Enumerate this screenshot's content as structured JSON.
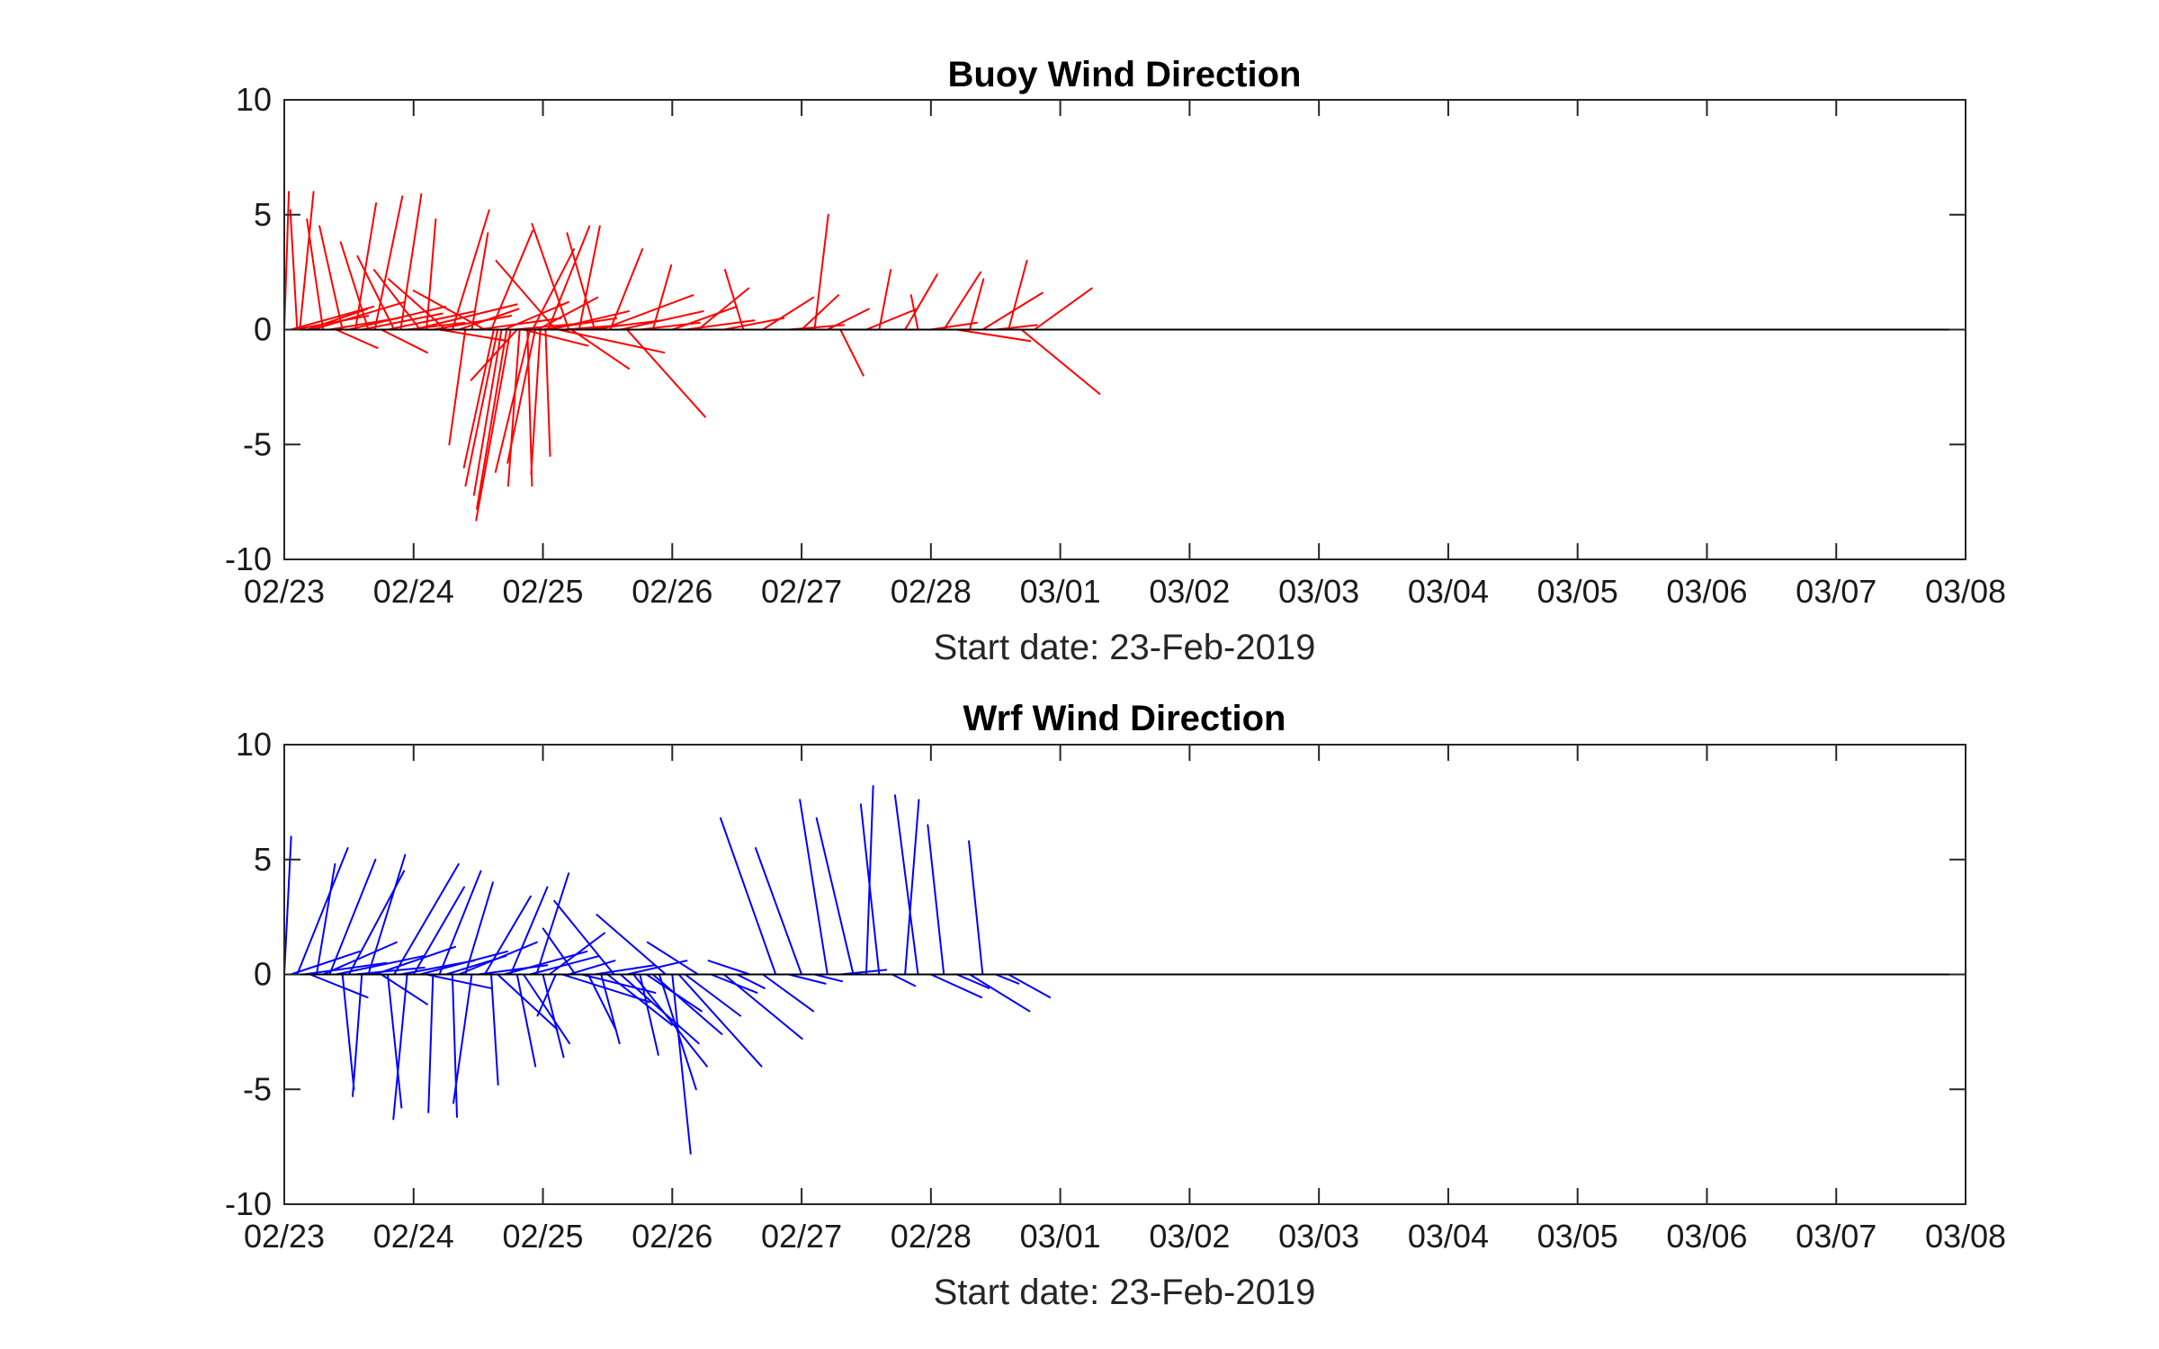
{
  "chart_data": [
    {
      "type": "feather",
      "title": "Buoy Wind Direction",
      "xlabel": "Start date: 23-Feb-2019",
      "ylabel": "",
      "color": "#ff0000",
      "xlim": [
        0,
        13
      ],
      "ylim": [
        -10,
        10
      ],
      "grid": false,
      "xtick_labels": [
        "02/23",
        "02/24",
        "02/25",
        "02/26",
        "02/27",
        "02/28",
        "03/01",
        "03/02",
        "03/03",
        "03/04",
        "03/05",
        "03/06",
        "03/07",
        "03/08"
      ],
      "ytick_labels": [
        "10",
        "5",
        "0",
        "-5",
        "-10"
      ],
      "ytick_values": [
        10,
        5,
        0,
        -5,
        -10
      ],
      "series": [
        {
          "x0": 0.0,
          "u": 0.2,
          "v": 6.0
        },
        {
          "x0": 0.05,
          "u": 3.6,
          "v": 1.0
        },
        {
          "x0": 0.08,
          "u": 3.2,
          "v": 0.6
        },
        {
          "x0": 0.1,
          "u": -0.3,
          "v": 5.2
        },
        {
          "x0": 0.12,
          "u": 0.6,
          "v": 6.0
        },
        {
          "x0": 0.18,
          "u": 2.6,
          "v": 0.9
        },
        {
          "x0": 0.22,
          "u": 4.0,
          "v": 1.2
        },
        {
          "x0": 0.3,
          "u": -0.7,
          "v": 4.8
        },
        {
          "x0": 0.35,
          "u": 3.0,
          "v": 0.5
        },
        {
          "x0": 0.4,
          "u": 1.8,
          "v": -0.8
        },
        {
          "x0": 0.45,
          "u": -1.0,
          "v": 4.5
        },
        {
          "x0": 0.5,
          "u": 4.2,
          "v": 1.0
        },
        {
          "x0": 0.55,
          "u": 0.9,
          "v": 5.5
        },
        {
          "x0": 0.6,
          "u": 3.5,
          "v": 0.7
        },
        {
          "x0": 0.65,
          "u": -1.2,
          "v": 3.8
        },
        {
          "x0": 0.7,
          "u": 1.2,
          "v": 5.8
        },
        {
          "x0": 0.75,
          "u": 2.0,
          "v": -1.0
        },
        {
          "x0": 0.8,
          "u": 3.8,
          "v": 0.8
        },
        {
          "x0": 0.85,
          "u": -1.6,
          "v": 3.2
        },
        {
          "x0": 0.9,
          "u": 0.9,
          "v": 5.9
        },
        {
          "x0": 0.95,
          "u": 2.5,
          "v": 0.3
        },
        {
          "x0": 1.0,
          "u": 4.5,
          "v": 1.1
        },
        {
          "x0": 1.05,
          "u": -2.0,
          "v": 2.6
        },
        {
          "x0": 1.1,
          "u": 0.4,
          "v": 4.8
        },
        {
          "x0": 1.15,
          "u": 3.4,
          "v": 0.6
        },
        {
          "x0": 1.2,
          "u": 3.0,
          "v": -0.5
        },
        {
          "x0": 1.25,
          "u": -2.5,
          "v": 2.2
        },
        {
          "x0": 1.3,
          "u": 1.6,
          "v": 5.2
        },
        {
          "x0": 1.35,
          "u": 2.6,
          "v": 0.9
        },
        {
          "x0": 1.4,
          "u": -0.7,
          "v": -5.0
        },
        {
          "x0": 1.45,
          "u": 0.7,
          "v": 4.2
        },
        {
          "x0": 1.5,
          "u": 3.6,
          "v": 0.5
        },
        {
          "x0": 1.55,
          "u": -3.1,
          "v": 1.7
        },
        {
          "x0": 1.6,
          "u": 1.8,
          "v": 4.3
        },
        {
          "x0": 1.62,
          "u": -1.3,
          "v": -6.0
        },
        {
          "x0": 1.65,
          "u": -1.4,
          "v": -6.8
        },
        {
          "x0": 1.68,
          "u": -1.2,
          "v": -7.2
        },
        {
          "x0": 1.7,
          "u": 2.8,
          "v": 1.2
        },
        {
          "x0": 1.72,
          "u": -1.3,
          "v": -7.8
        },
        {
          "x0": 1.75,
          "u": -1.5,
          "v": -8.3
        },
        {
          "x0": 1.78,
          "u": 3.2,
          "v": 0.3
        },
        {
          "x0": 1.8,
          "u": -2.0,
          "v": -2.2
        },
        {
          "x0": 1.82,
          "u": -0.5,
          "v": -6.8
        },
        {
          "x0": 1.85,
          "u": 2.8,
          "v": -0.7
        },
        {
          "x0": 1.88,
          "u": 0.2,
          "v": -6.8
        },
        {
          "x0": 1.9,
          "u": -1.5,
          "v": -6.2
        },
        {
          "x0": 1.92,
          "u": 1.8,
          "v": 3.5
        },
        {
          "x0": 1.94,
          "u": -1.2,
          "v": -5.8
        },
        {
          "x0": 1.96,
          "u": 2.6,
          "v": 1.4
        },
        {
          "x0": 1.98,
          "u": -0.4,
          "v": -6.3
        },
        {
          "x0": 2.0,
          "u": 3.2,
          "v": 0.5
        },
        {
          "x0": 2.02,
          "u": 0.2,
          "v": -5.5
        },
        {
          "x0": 2.04,
          "u": 1.8,
          "v": 4.5
        },
        {
          "x0": 2.06,
          "u": 3.4,
          "v": 0.8
        },
        {
          "x0": 2.1,
          "u": -2.6,
          "v": 3.0
        },
        {
          "x0": 2.12,
          "u": 4.6,
          "v": -1.0
        },
        {
          "x0": 2.16,
          "u": 2.6,
          "v": 0.2
        },
        {
          "x0": 2.2,
          "u": -1.6,
          "v": 4.6
        },
        {
          "x0": 2.22,
          "u": 2.5,
          "v": -1.7
        },
        {
          "x0": 2.28,
          "u": 0.9,
          "v": 4.5
        },
        {
          "x0": 2.35,
          "u": 3.2,
          "v": 0.4
        },
        {
          "x0": 2.4,
          "u": -1.2,
          "v": 4.2
        },
        {
          "x0": 2.45,
          "u": 4.0,
          "v": 1.5
        },
        {
          "x0": 2.52,
          "u": 1.4,
          "v": 3.5
        },
        {
          "x0": 2.6,
          "u": 3.6,
          "v": 0.8
        },
        {
          "x0": 2.65,
          "u": 3.4,
          "v": -3.8
        },
        {
          "x0": 2.75,
          "u": 2.6,
          "v": 0.3
        },
        {
          "x0": 2.85,
          "u": 0.8,
          "v": 2.8
        },
        {
          "x0": 3.0,
          "u": 2.8,
          "v": 1.0
        },
        {
          "x0": 3.1,
          "u": 3.0,
          "v": 0.4
        },
        {
          "x0": 3.2,
          "u": 2.2,
          "v": 1.8
        },
        {
          "x0": 3.4,
          "u": 2.6,
          "v": 0.5
        },
        {
          "x0": 3.55,
          "u": -0.8,
          "v": 2.6
        },
        {
          "x0": 3.7,
          "u": 2.2,
          "v": 1.4
        },
        {
          "x0": 3.9,
          "u": 2.4,
          "v": 0.2
        },
        {
          "x0": 4.0,
          "u": 1.6,
          "v": 1.5
        },
        {
          "x0": 4.1,
          "u": 0.6,
          "v": 5.0
        },
        {
          "x0": 4.2,
          "u": 1.8,
          "v": 0.9
        },
        {
          "x0": 4.3,
          "u": 1.0,
          "v": -2.0
        },
        {
          "x0": 4.5,
          "u": 2.2,
          "v": 0.9
        },
        {
          "x0": 4.6,
          "u": 0.5,
          "v": 2.6
        },
        {
          "x0": 4.8,
          "u": 1.4,
          "v": 2.4
        },
        {
          "x0": 4.9,
          "u": -0.3,
          "v": 1.5
        },
        {
          "x0": 5.0,
          "u": 2.0,
          "v": 0.3
        },
        {
          "x0": 5.1,
          "u": 1.6,
          "v": 2.5
        },
        {
          "x0": 5.2,
          "u": 3.2,
          "v": -0.5
        },
        {
          "x0": 5.3,
          "u": 0.6,
          "v": 2.2
        },
        {
          "x0": 5.4,
          "u": 2.6,
          "v": 1.6
        },
        {
          "x0": 5.5,
          "u": 1.8,
          "v": 0.2
        },
        {
          "x0": 5.6,
          "u": 0.8,
          "v": 3.0
        },
        {
          "x0": 5.7,
          "u": 3.4,
          "v": -2.8
        },
        {
          "x0": 5.8,
          "u": 2.5,
          "v": 1.8
        }
      ]
    },
    {
      "type": "feather",
      "title": "Wrf Wind Direction",
      "xlabel": "Start date: 23-Feb-2019",
      "ylabel": "",
      "color": "#0000ff",
      "xlim": [
        0,
        13
      ],
      "ylim": [
        -10,
        10
      ],
      "grid": false,
      "xtick_labels": [
        "02/23",
        "02/24",
        "02/25",
        "02/26",
        "02/27",
        "02/28",
        "03/01",
        "03/02",
        "03/03",
        "03/04",
        "03/05",
        "03/06",
        "03/07",
        "03/08"
      ],
      "ytick_labels": [
        "10",
        "5",
        "0",
        "-5",
        "-10"
      ],
      "ytick_values": [
        10,
        5,
        0,
        -5,
        -10
      ],
      "series": [
        {
          "x0": 0.0,
          "u": 0.3,
          "v": 6.0
        },
        {
          "x0": 0.05,
          "u": 3.0,
          "v": 1.0
        },
        {
          "x0": 0.1,
          "u": 2.2,
          "v": 5.5
        },
        {
          "x0": 0.15,
          "u": 3.6,
          "v": 0.5
        },
        {
          "x0": 0.2,
          "u": 2.5,
          "v": -1.0
        },
        {
          "x0": 0.25,
          "u": 0.8,
          "v": 4.8
        },
        {
          "x0": 0.3,
          "u": 3.2,
          "v": 1.4
        },
        {
          "x0": 0.35,
          "u": 2.0,
          "v": 5.0
        },
        {
          "x0": 0.4,
          "u": 3.8,
          "v": 0.8
        },
        {
          "x0": 0.45,
          "u": 0.5,
          "v": -5.0
        },
        {
          "x0": 0.5,
          "u": 2.4,
          "v": 4.5
        },
        {
          "x0": 0.55,
          "u": 3.0,
          "v": 0.3
        },
        {
          "x0": 0.6,
          "u": -0.4,
          "v": -5.3
        },
        {
          "x0": 0.65,
          "u": 1.6,
          "v": 5.2
        },
        {
          "x0": 0.7,
          "u": 3.5,
          "v": 1.2
        },
        {
          "x0": 0.75,
          "u": 2.0,
          "v": -1.3
        },
        {
          "x0": 0.8,
          "u": 0.6,
          "v": -5.8
        },
        {
          "x0": 0.85,
          "u": 2.8,
          "v": 4.8
        },
        {
          "x0": 0.9,
          "u": 3.2,
          "v": 0.6
        },
        {
          "x0": 0.95,
          "u": -0.6,
          "v": -6.3
        },
        {
          "x0": 1.0,
          "u": 2.2,
          "v": 3.8
        },
        {
          "x0": 1.05,
          "u": 3.8,
          "v": 1.0
        },
        {
          "x0": 1.1,
          "u": 2.8,
          "v": -0.6
        },
        {
          "x0": 1.15,
          "u": -0.2,
          "v": -6.0
        },
        {
          "x0": 1.2,
          "u": 1.8,
          "v": 4.5
        },
        {
          "x0": 1.25,
          "u": 2.6,
          "v": 0.8
        },
        {
          "x0": 1.3,
          "u": 0.2,
          "v": -6.2
        },
        {
          "x0": 1.35,
          "u": 3.4,
          "v": 1.4
        },
        {
          "x0": 1.4,
          "u": 1.2,
          "v": 4.0
        },
        {
          "x0": 1.45,
          "u": -0.8,
          "v": -5.6
        },
        {
          "x0": 1.5,
          "u": 3.0,
          "v": 0.4
        },
        {
          "x0": 1.55,
          "u": 2.0,
          "v": 3.4
        },
        {
          "x0": 1.6,
          "u": 0.3,
          "v": -4.8
        },
        {
          "x0": 1.65,
          "u": 2.6,
          "v": -2.4
        },
        {
          "x0": 1.7,
          "u": 3.6,
          "v": 1.0
        },
        {
          "x0": 1.75,
          "u": 1.6,
          "v": 3.8
        },
        {
          "x0": 1.8,
          "u": 0.8,
          "v": -4.0
        },
        {
          "x0": 1.85,
          "u": 2.0,
          "v": -3.0
        },
        {
          "x0": 1.9,
          "u": 3.0,
          "v": 0.8
        },
        {
          "x0": 1.95,
          "u": 1.4,
          "v": 4.4
        },
        {
          "x0": 2.0,
          "u": 0.9,
          "v": -3.6
        },
        {
          "x0": 2.05,
          "u": 2.4,
          "v": 1.8
        },
        {
          "x0": 2.1,
          "u": -0.8,
          "v": -1.8
        },
        {
          "x0": 2.15,
          "u": 3.8,
          "v": -1.2
        },
        {
          "x0": 2.2,
          "u": 2.0,
          "v": 0.6
        },
        {
          "x0": 2.25,
          "u": -1.4,
          "v": 2.0
        },
        {
          "x0": 2.3,
          "u": 3.2,
          "v": -0.8
        },
        {
          "x0": 2.35,
          "u": 1.2,
          "v": -2.4
        },
        {
          "x0": 2.4,
          "u": 2.6,
          "v": 0.4
        },
        {
          "x0": 2.45,
          "u": 0.8,
          "v": -3.0
        },
        {
          "x0": 2.5,
          "u": 2.8,
          "v": -2.2
        },
        {
          "x0": 2.55,
          "u": -2.6,
          "v": 3.2
        },
        {
          "x0": 2.6,
          "u": 3.4,
          "v": -3.0
        },
        {
          "x0": 2.65,
          "u": 2.6,
          "v": 0.6
        },
        {
          "x0": 2.7,
          "u": 3.2,
          "v": -4.0
        },
        {
          "x0": 2.75,
          "u": 0.8,
          "v": -3.5
        },
        {
          "x0": 2.8,
          "u": 2.4,
          "v": -1.6
        },
        {
          "x0": 2.85,
          "u": 3.0,
          "v": -2.6
        },
        {
          "x0": 2.9,
          "u": 1.6,
          "v": -5.0
        },
        {
          "x0": 2.95,
          "u": -3.0,
          "v": 2.6
        },
        {
          "x0": 3.0,
          "u": 0.8,
          "v": -7.8
        },
        {
          "x0": 3.05,
          "u": 3.6,
          "v": -4.0
        },
        {
          "x0": 3.1,
          "u": 2.4,
          "v": -1.8
        },
        {
          "x0": 3.2,
          "u": -2.2,
          "v": 1.4
        },
        {
          "x0": 3.3,
          "u": 2.0,
          "v": -0.8
        },
        {
          "x0": 3.4,
          "u": 3.4,
          "v": -2.8
        },
        {
          "x0": 3.5,
          "u": 1.2,
          "v": -0.6
        },
        {
          "x0": 3.6,
          "u": -1.8,
          "v": 0.6
        },
        {
          "x0": 3.7,
          "u": 2.2,
          "v": -1.6
        },
        {
          "x0": 3.8,
          "u": -2.4,
          "v": 6.8
        },
        {
          "x0": 3.9,
          "u": 1.6,
          "v": -0.4
        },
        {
          "x0": 4.0,
          "u": -2.0,
          "v": 5.5
        },
        {
          "x0": 4.1,
          "u": 1.2,
          "v": -0.3
        },
        {
          "x0": 4.2,
          "u": -1.2,
          "v": 7.6
        },
        {
          "x0": 4.3,
          "u": 2.0,
          "v": 0.2
        },
        {
          "x0": 4.4,
          "u": -1.6,
          "v": 6.8
        },
        {
          "x0": 4.5,
          "u": 0.3,
          "v": 8.2
        },
        {
          "x0": 4.6,
          "u": -0.8,
          "v": 7.4
        },
        {
          "x0": 4.7,
          "u": 1.0,
          "v": -0.5
        },
        {
          "x0": 4.8,
          "u": 0.6,
          "v": 7.6
        },
        {
          "x0": 4.9,
          "u": -1.0,
          "v": 7.8
        },
        {
          "x0": 5.0,
          "u": 2.2,
          "v": -1.0
        },
        {
          "x0": 5.1,
          "u": -0.7,
          "v": 6.5
        },
        {
          "x0": 5.2,
          "u": 1.4,
          "v": -0.6
        },
        {
          "x0": 5.3,
          "u": 2.6,
          "v": -1.6
        },
        {
          "x0": 5.4,
          "u": -0.6,
          "v": 5.8
        },
        {
          "x0": 5.5,
          "u": 1.0,
          "v": -0.4
        },
        {
          "x0": 5.6,
          "u": 1.8,
          "v": -1.0
        }
      ]
    }
  ]
}
